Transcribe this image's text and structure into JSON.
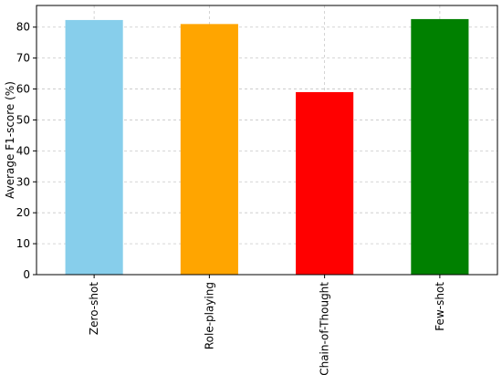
{
  "chart_data": {
    "type": "bar",
    "title": "",
    "xlabel": "",
    "ylabel": "Average F1-score (%)",
    "categories": [
      "Zero-shot",
      "Role-playing",
      "Chain-of-Thought",
      "Few-shot"
    ],
    "values": [
      82.3,
      81.0,
      59.0,
      82.6
    ],
    "colors": [
      "#87ceeb",
      "#ffa500",
      "#ff0000",
      "#008000"
    ],
    "ylim": [
      0,
      87
    ],
    "yticks": [
      0,
      10,
      20,
      30,
      40,
      50,
      60,
      70,
      80
    ],
    "grid": true,
    "x_tick_rotation": "vertical"
  }
}
